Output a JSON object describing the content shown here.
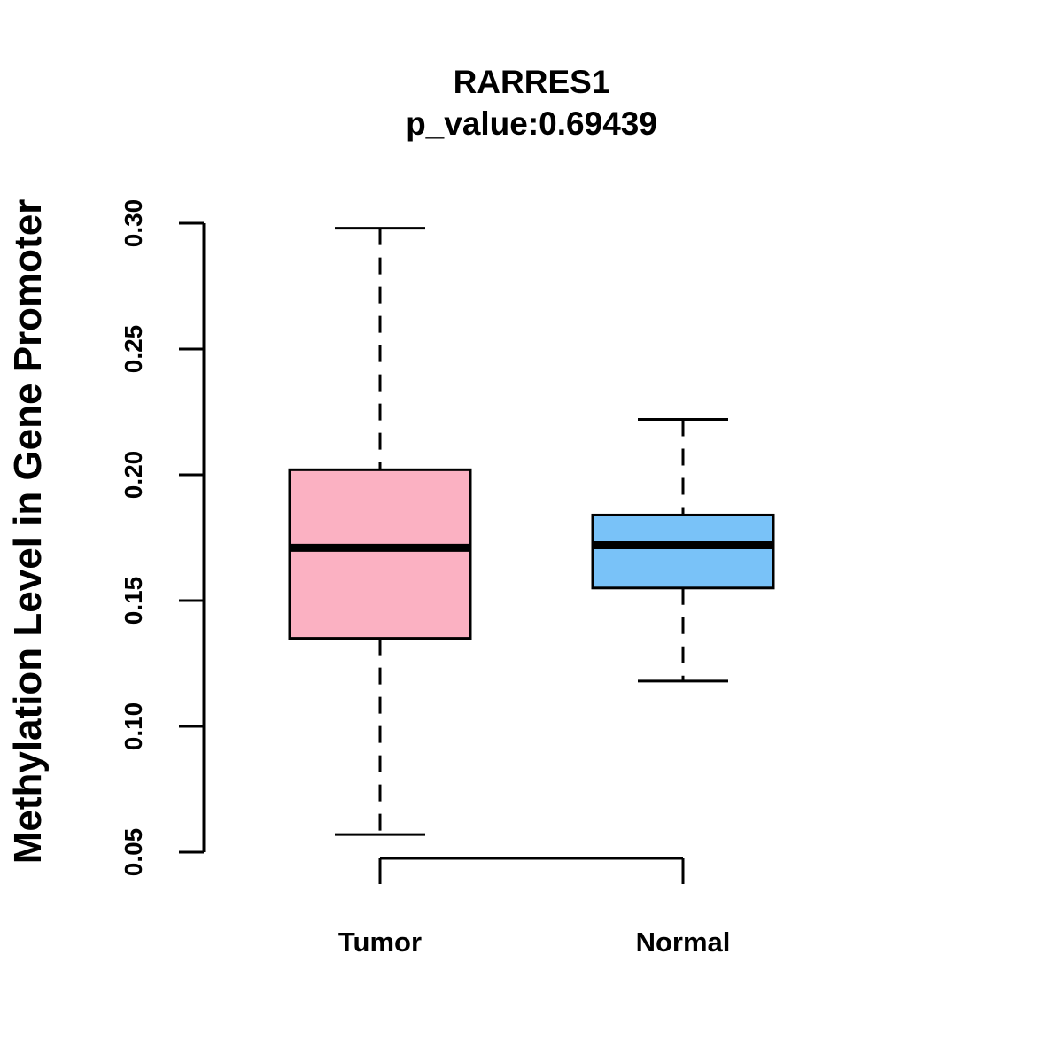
{
  "chart_data": {
    "type": "boxplot",
    "title": "RARRES1",
    "subtitle": "p_value:0.69439",
    "xlabel": "",
    "ylabel": "Methylation Level in Gene Promoter",
    "ylim": [
      0.05,
      0.3
    ],
    "yticks": [
      {
        "value": 0.05,
        "label": "0.05"
      },
      {
        "value": 0.1,
        "label": "0.10"
      },
      {
        "value": 0.15,
        "label": "0.15"
      },
      {
        "value": 0.2,
        "label": "0.20"
      },
      {
        "value": 0.25,
        "label": "0.25"
      },
      {
        "value": 0.3,
        "label": "0.30"
      }
    ],
    "categories": [
      "Tumor",
      "Normal"
    ],
    "boxes": [
      {
        "name": "Tumor",
        "whisker_low": 0.057,
        "q1": 0.135,
        "median": 0.171,
        "q3": 0.202,
        "whisker_high": 0.298,
        "color": "#FBB1C2"
      },
      {
        "name": "Normal",
        "whisker_low": 0.118,
        "q1": 0.155,
        "median": 0.172,
        "q3": 0.184,
        "whisker_high": 0.222,
        "color": "#79C2F8"
      }
    ],
    "grid": false
  }
}
